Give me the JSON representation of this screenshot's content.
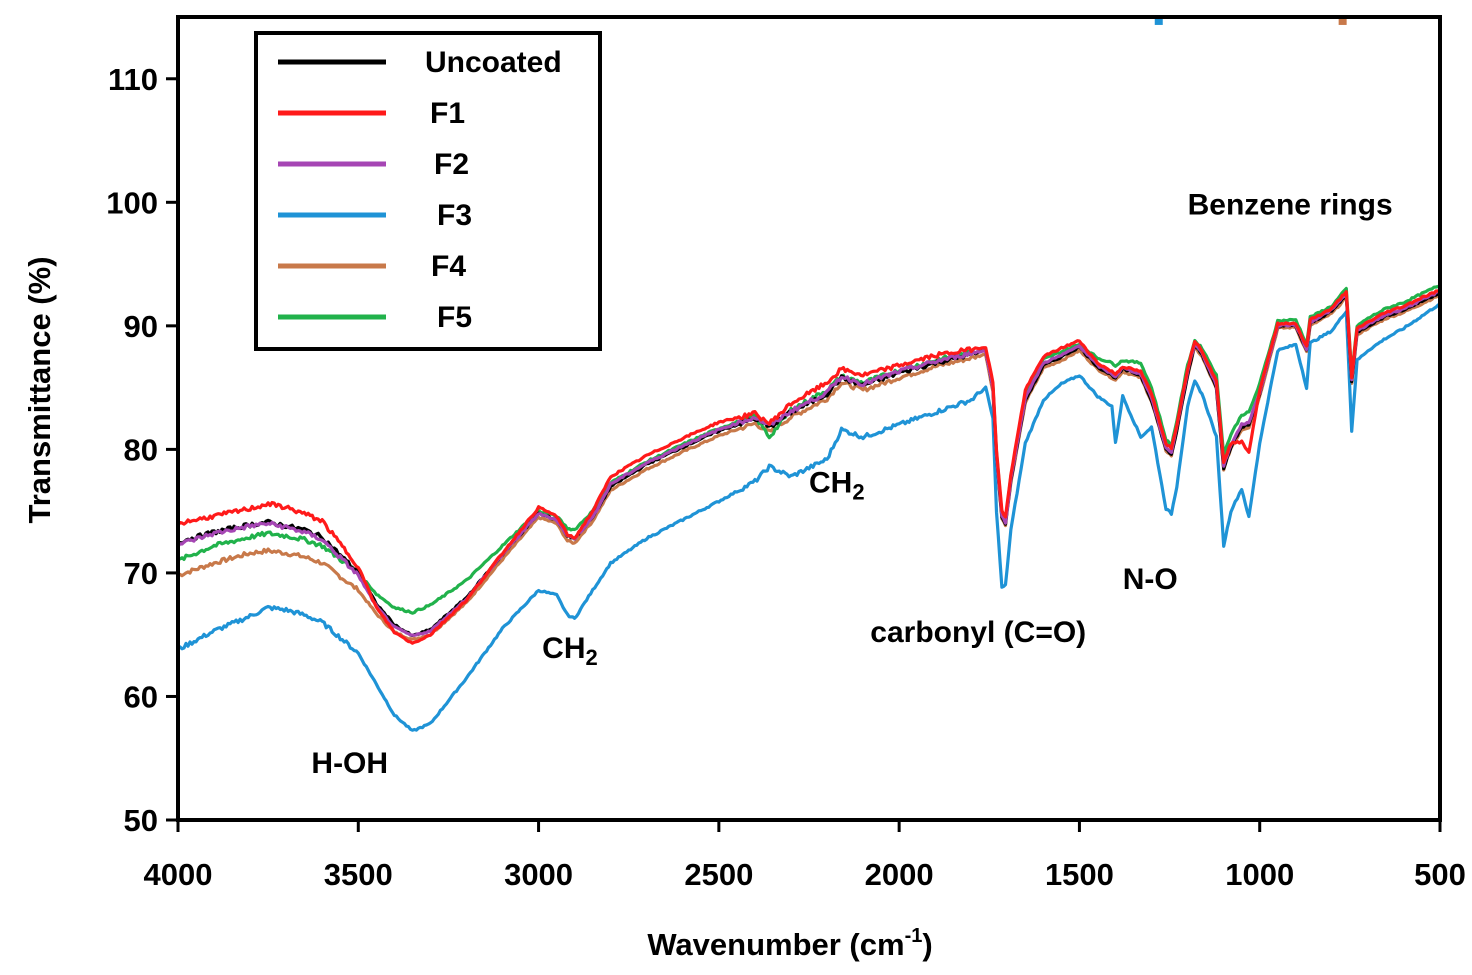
{
  "chart_data": {
    "type": "line",
    "xlabel": "Wavenumber (cm",
    "xlabel_sup": "-1",
    "xlabel_close": ")",
    "ylabel": "Transmittance (%)",
    "xlim": [
      4000,
      500
    ],
    "ylim": [
      50,
      115
    ],
    "x_ticks": [
      4000,
      3500,
      3000,
      2500,
      2000,
      1500,
      1000,
      500
    ],
    "y_ticks": [
      50,
      60,
      70,
      80,
      90,
      100,
      110
    ],
    "grid": false,
    "legend_position": "top-left",
    "x": [
      4000,
      3900,
      3800,
      3750,
      3700,
      3650,
      3600,
      3500,
      3450,
      3400,
      3350,
      3300,
      3200,
      3100,
      3000,
      2950,
      2920,
      2900,
      2850,
      2800,
      2700,
      2600,
      2500,
      2400,
      2360,
      2300,
      2200,
      2160,
      2100,
      2000,
      1900,
      1800,
      1760,
      1740,
      1730,
      1715,
      1705,
      1690,
      1650,
      1600,
      1550,
      1500,
      1450,
      1410,
      1400,
      1380,
      1330,
      1300,
      1260,
      1245,
      1230,
      1200,
      1180,
      1160,
      1120,
      1100,
      1080,
      1050,
      1030,
      1000,
      950,
      900,
      870,
      860,
      800,
      760,
      745,
      730,
      700,
      650,
      600,
      550,
      500
    ],
    "series": [
      {
        "name": "Uncoated",
        "color": "#000000",
        "values": [
          72.5,
          73.3,
          73.9,
          74.1,
          73.8,
          73.5,
          72.9,
          70.0,
          67.5,
          65.8,
          64.9,
          65.4,
          68.0,
          71.5,
          74.8,
          74.3,
          73.0,
          72.8,
          74.5,
          77.0,
          78.8,
          80.2,
          81.5,
          82.5,
          81.8,
          83.0,
          84.5,
          85.8,
          85.2,
          86.2,
          87.0,
          87.7,
          88.0,
          85.0,
          79.5,
          74.5,
          74.0,
          77.5,
          84.0,
          86.8,
          87.5,
          88.3,
          86.7,
          86.0,
          85.8,
          86.5,
          86.0,
          84.0,
          80.0,
          79.6,
          81.5,
          86.0,
          88.5,
          87.7,
          85.0,
          78.5,
          80.2,
          81.8,
          82.0,
          84.5,
          90.0,
          90.0,
          88.0,
          90.2,
          91.2,
          92.5,
          85.5,
          89.5,
          90.0,
          90.8,
          91.3,
          92.0,
          92.7
        ]
      },
      {
        "name": "F1",
        "color": "#ff1a1a",
        "values": [
          74.0,
          74.6,
          75.2,
          75.6,
          75.3,
          74.8,
          74.2,
          70.5,
          67.2,
          65.2,
          64.3,
          65.0,
          67.8,
          71.6,
          75.3,
          74.6,
          73.1,
          72.8,
          75.0,
          77.8,
          79.5,
          80.9,
          82.2,
          82.9,
          82.1,
          83.7,
          85.4,
          86.5,
          86.0,
          86.8,
          87.6,
          88.1,
          88.3,
          85.4,
          80.0,
          75.0,
          74.5,
          78.0,
          84.8,
          87.5,
          88.2,
          88.8,
          87.0,
          86.3,
          86.1,
          86.7,
          86.3,
          84.5,
          80.5,
          80.1,
          82.0,
          86.5,
          88.8,
          88.0,
          85.5,
          79.0,
          80.5,
          80.6,
          79.8,
          84.8,
          90.2,
          90.2,
          88.3,
          90.5,
          91.4,
          92.8,
          85.8,
          89.8,
          90.3,
          91.1,
          91.6,
          92.3,
          92.9
        ]
      },
      {
        "name": "F2",
        "color": "#a646b4",
        "values": [
          72.3,
          73.2,
          73.8,
          74.0,
          73.7,
          73.3,
          72.7,
          69.8,
          67.3,
          65.6,
          64.9,
          65.3,
          67.9,
          71.5,
          74.8,
          74.3,
          73.0,
          72.8,
          74.5,
          77.2,
          78.9,
          80.3,
          81.6,
          82.6,
          81.9,
          83.1,
          84.6,
          85.9,
          85.3,
          86.3,
          87.1,
          87.8,
          88.0,
          85.0,
          79.6,
          74.6,
          74.1,
          77.6,
          84.2,
          87.0,
          87.6,
          88.4,
          86.8,
          86.1,
          85.9,
          86.6,
          86.1,
          84.2,
          80.1,
          79.8,
          81.8,
          86.3,
          88.6,
          87.8,
          85.2,
          78.7,
          80.4,
          82.0,
          82.2,
          84.6,
          90.0,
          90.1,
          88.1,
          90.3,
          91.3,
          92.6,
          85.6,
          89.6,
          90.1,
          90.9,
          91.4,
          92.1,
          92.8
        ]
      },
      {
        "name": "F3",
        "color": "#1f93d6",
        "values": [
          63.8,
          65.3,
          66.5,
          67.2,
          67.0,
          66.6,
          66.0,
          63.5,
          61.0,
          58.5,
          57.2,
          57.8,
          61.5,
          65.5,
          68.6,
          68.2,
          66.6,
          66.3,
          68.6,
          70.8,
          72.8,
          74.3,
          75.8,
          77.4,
          78.6,
          77.8,
          79.2,
          81.6,
          81.0,
          82.0,
          83.0,
          84.0,
          85.0,
          82.5,
          75.0,
          68.8,
          69.0,
          73.5,
          80.5,
          84.0,
          85.3,
          86.0,
          84.3,
          83.5,
          80.5,
          84.3,
          81.0,
          81.8,
          75.2,
          74.8,
          77.0,
          83.5,
          85.5,
          84.5,
          81.0,
          72.2,
          75.0,
          76.8,
          74.5,
          80.5,
          88.0,
          88.5,
          85.0,
          88.6,
          89.6,
          91.2,
          81.5,
          87.2,
          88.0,
          89.0,
          89.8,
          90.8,
          91.8
        ]
      },
      {
        "name": "F4",
        "color": "#c8794a",
        "values": [
          69.8,
          70.8,
          71.6,
          71.8,
          71.6,
          71.3,
          70.8,
          68.6,
          66.7,
          65.2,
          64.6,
          65.0,
          67.6,
          71.1,
          74.5,
          74.0,
          72.6,
          72.4,
          74.2,
          76.7,
          78.4,
          79.8,
          81.1,
          82.1,
          81.4,
          82.6,
          84.1,
          85.4,
          84.8,
          85.8,
          86.7,
          87.4,
          87.7,
          84.7,
          79.3,
          74.4,
          73.9,
          77.3,
          83.8,
          86.6,
          87.2,
          88.0,
          86.5,
          85.8,
          85.6,
          86.3,
          85.8,
          83.9,
          79.9,
          79.5,
          81.5,
          86.0,
          88.3,
          87.5,
          84.9,
          78.4,
          80.1,
          81.6,
          81.8,
          84.3,
          89.8,
          89.9,
          87.9,
          90.0,
          91.0,
          92.3,
          85.3,
          89.3,
          89.8,
          90.6,
          91.1,
          91.8,
          92.5
        ]
      },
      {
        "name": "F5",
        "color": "#21b24b",
        "values": [
          71.0,
          72.2,
          72.9,
          73.2,
          73.0,
          72.7,
          72.2,
          70.0,
          68.3,
          67.2,
          66.8,
          67.4,
          69.4,
          72.2,
          75.0,
          74.6,
          73.6,
          73.5,
          75.0,
          77.3,
          79.0,
          80.4,
          81.7,
          82.7,
          81.0,
          83.2,
          84.8,
          85.9,
          85.4,
          86.4,
          87.2,
          87.9,
          88.1,
          85.2,
          79.8,
          74.8,
          74.3,
          77.8,
          84.5,
          87.3,
          87.9,
          88.5,
          87.4,
          87.0,
          86.8,
          87.2,
          87.0,
          85.0,
          80.8,
          80.3,
          82.3,
          86.8,
          88.8,
          88.2,
          86.0,
          79.6,
          81.2,
          82.8,
          83.0,
          85.3,
          90.4,
          90.5,
          88.5,
          90.7,
          91.6,
          93.0,
          86.0,
          90.0,
          90.6,
          91.4,
          91.9,
          92.6,
          93.3
        ]
      }
    ],
    "annotations": [
      {
        "text": "H-OH",
        "x": 3630,
        "y": 53.8
      },
      {
        "text": "CH",
        "sub": "2",
        "x": 2990,
        "y": 63.1
      },
      {
        "text": "CH",
        "sub": "2",
        "x": 2250,
        "y": 76.5
      },
      {
        "text": "carbonyl (C=O)",
        "x": 2080,
        "y": 64.4
      },
      {
        "text": "N-O",
        "x": 1380,
        "y": 68.7
      },
      {
        "text": "Benzene rings",
        "x": 1200,
        "y": 99.0
      }
    ],
    "stray_marks": [
      {
        "color": "#1f93d6",
        "x": 1280,
        "y": 114.6
      },
      {
        "color": "#c8794a",
        "x": 770,
        "y": 114.6
      }
    ]
  }
}
